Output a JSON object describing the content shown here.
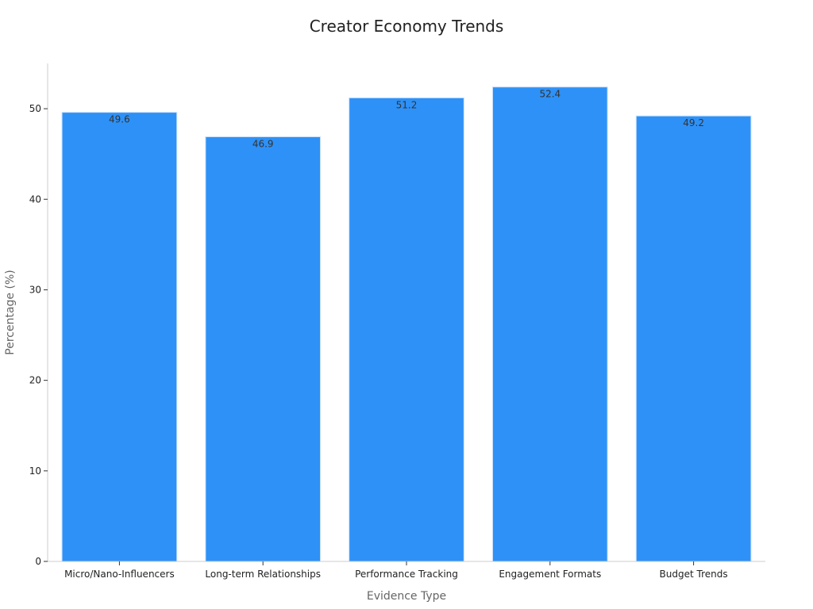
{
  "chart_data": {
    "type": "bar",
    "title": "Creator Economy Trends",
    "xlabel": "Evidence Type",
    "ylabel": "Percentage (%)",
    "categories": [
      "Micro/Nano-Influencers",
      "Long-term Relationships",
      "Performance Tracking",
      "Engagement Formats",
      "Budget Trends"
    ],
    "values": [
      49.6,
      46.9,
      51.2,
      52.4,
      49.2
    ],
    "value_labels": [
      "49.6",
      "46.9",
      "51.2",
      "52.4",
      "49.2"
    ],
    "ylim": [
      0,
      55
    ],
    "yticks": [
      0,
      10,
      20,
      30,
      40,
      50
    ],
    "ytick_labels": [
      "0",
      "10",
      "20",
      "30",
      "40",
      "50"
    ],
    "grid": false,
    "legend": "none",
    "colors": {
      "bar": "#2e91f7",
      "bar_edge": "#c7e0fb"
    }
  }
}
